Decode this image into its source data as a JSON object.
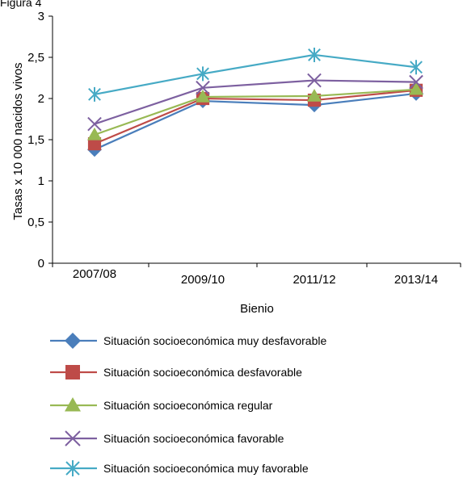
{
  "top_fragment": "Figura 4",
  "chart_data": {
    "type": "line",
    "title": "",
    "xlabel": "Bienio",
    "ylabel": "Tasas x 10 000 nacidos vivos",
    "categories": [
      "2007/08",
      "2009/10",
      "2011/12",
      "2013/14"
    ],
    "ylim": [
      0,
      3
    ],
    "yticks": [
      0,
      0.5,
      1,
      1.5,
      2,
      2.5,
      3
    ],
    "ytick_labels": [
      "0",
      "0,5",
      "1",
      "1,5",
      "2",
      "2,5",
      "3"
    ],
    "grid": false,
    "legend_position": "bottom",
    "series": [
      {
        "name": "Situación socioeconómica muy desfavorable",
        "values": [
          1.38,
          1.97,
          1.92,
          2.06
        ],
        "color": "#4a7ebb",
        "marker": "diamond"
      },
      {
        "name": "Situación socioeconómica desfavorable",
        "values": [
          1.45,
          2.0,
          1.98,
          2.1
        ],
        "color": "#be4b48",
        "marker": "square"
      },
      {
        "name": "Situación socioeconómica regular",
        "values": [
          1.56,
          2.02,
          2.03,
          2.11
        ],
        "color": "#98b954",
        "marker": "triangle"
      },
      {
        "name": "Situación socioeconómica favorable",
        "values": [
          1.69,
          2.13,
          2.22,
          2.2
        ],
        "color": "#7d60a0",
        "marker": "x"
      },
      {
        "name": "Situación socioeconómica muy favorable",
        "values": [
          2.05,
          2.3,
          2.53,
          2.38
        ],
        "color": "#46aac5",
        "marker": "star"
      }
    ]
  }
}
